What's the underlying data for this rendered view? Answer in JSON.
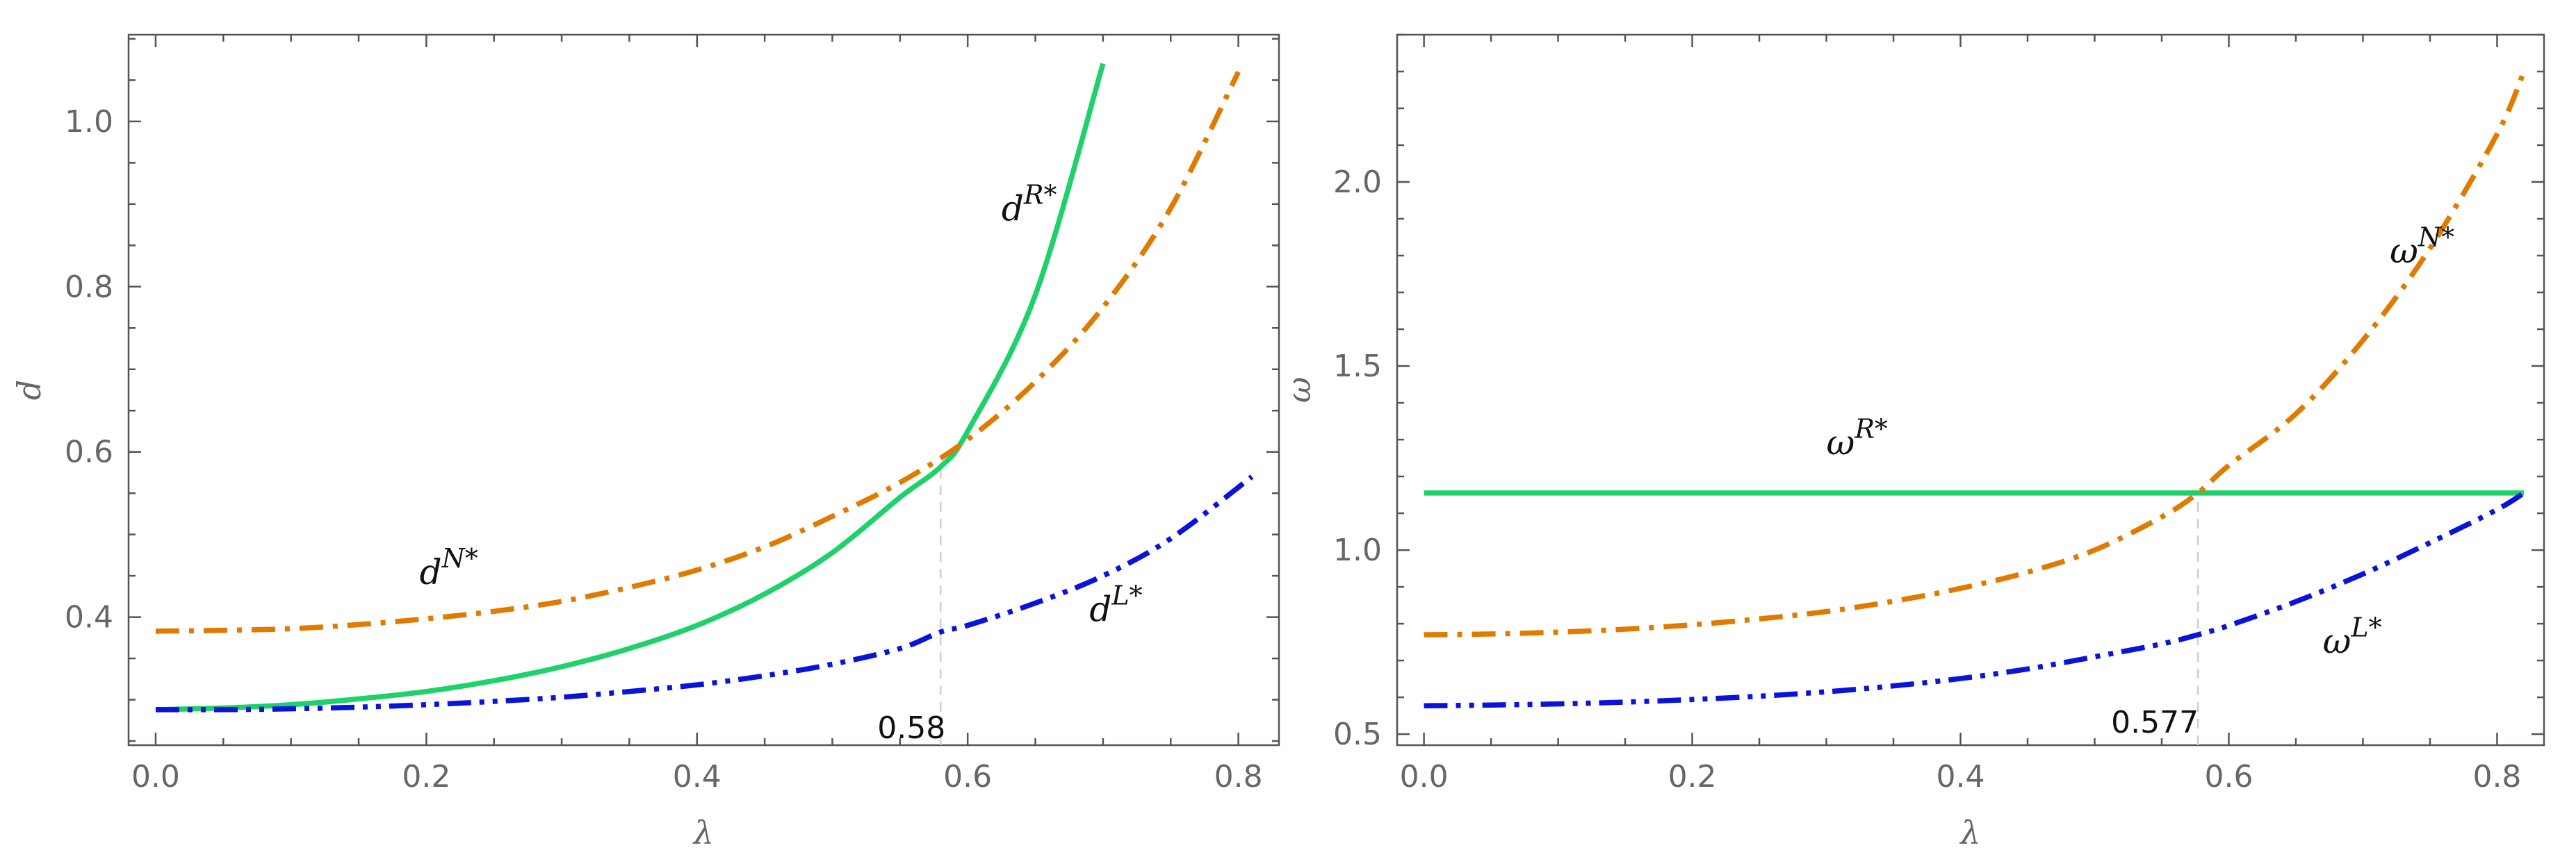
{
  "chart_data": [
    {
      "type": "line",
      "title": "",
      "xlabel": "λ",
      "ylabel": "d",
      "xlim": [
        -0.02,
        0.83
      ],
      "ylim": [
        0.245,
        1.105
      ],
      "xticks": [
        0.0,
        0.2,
        0.4,
        0.6,
        0.8
      ],
      "xtick_labels": [
        "0.0",
        "0.2",
        "0.4",
        "0.6",
        "0.8"
      ],
      "yticks": [
        0.4,
        0.6,
        0.8,
        1.0
      ],
      "ytick_labels": [
        "0.4",
        "0.6",
        "0.8",
        "1.0"
      ],
      "grid": false,
      "series": [
        {
          "name": "d^{R*}",
          "color": "#1fd16a",
          "style": "solid",
          "x": [
            0.0,
            0.05,
            0.1,
            0.15,
            0.2,
            0.25,
            0.3,
            0.35,
            0.4,
            0.45,
            0.5,
            0.55,
            0.58,
            0.6,
            0.65,
            0.7
          ],
          "y": [
            0.288,
            0.29,
            0.294,
            0.301,
            0.31,
            0.323,
            0.34,
            0.362,
            0.39,
            0.428,
            0.478,
            0.545,
            0.582,
            0.625,
            0.79,
            1.07
          ]
        },
        {
          "name": "d^{N*}",
          "color": "#e07b00",
          "style": "dashdot",
          "x": [
            0.0,
            0.05,
            0.1,
            0.15,
            0.2,
            0.25,
            0.3,
            0.35,
            0.4,
            0.45,
            0.5,
            0.55,
            0.6,
            0.65,
            0.7,
            0.75,
            0.8
          ],
          "y": [
            0.383,
            0.384,
            0.386,
            0.391,
            0.398,
            0.407,
            0.419,
            0.436,
            0.457,
            0.485,
            0.522,
            0.563,
            0.615,
            0.685,
            0.775,
            0.895,
            1.06
          ]
        },
        {
          "name": "d^{L*}",
          "color": "#0a14d9",
          "style": "dashdotdot",
          "x": [
            0.0,
            0.05,
            0.1,
            0.15,
            0.2,
            0.25,
            0.3,
            0.35,
            0.4,
            0.45,
            0.5,
            0.55,
            0.58,
            0.6,
            0.65,
            0.7,
            0.75,
            0.81
          ],
          "y": [
            0.288,
            0.288,
            0.289,
            0.291,
            0.294,
            0.298,
            0.303,
            0.31,
            0.318,
            0.329,
            0.343,
            0.362,
            0.382,
            0.39,
            0.417,
            0.45,
            0.495,
            0.57
          ]
        }
      ],
      "marker": {
        "x": 0.58,
        "label": "0.58"
      },
      "curve_labels": [
        {
          "base": "d",
          "sup": "R*",
          "x": 0.625,
          "y": 0.88
        },
        {
          "base": "d",
          "sup": "N*",
          "x": 0.195,
          "y": 0.44
        },
        {
          "base": "d",
          "sup": "L*",
          "x": 0.69,
          "y": 0.395
        }
      ]
    },
    {
      "type": "line",
      "title": "",
      "xlabel": "λ",
      "ylabel": "ω",
      "xlim": [
        -0.02,
        0.835
      ],
      "ylim": [
        0.47,
        2.4
      ],
      "xticks": [
        0.0,
        0.2,
        0.4,
        0.6,
        0.8
      ],
      "xtick_labels": [
        "0.0",
        "0.2",
        "0.4",
        "0.6",
        "0.8"
      ],
      "yticks": [
        0.5,
        1.0,
        1.5,
        2.0
      ],
      "ytick_labels": [
        "0.5",
        "1.0",
        "1.5",
        "2.0"
      ],
      "grid": false,
      "series": [
        {
          "name": "ω^{R*}",
          "color": "#1fd16a",
          "style": "solid",
          "x": [
            0.0,
            0.82
          ],
          "y": [
            1.155,
            1.155
          ]
        },
        {
          "name": "ω^{N*}",
          "color": "#e07b00",
          "style": "dashdot",
          "x": [
            0.0,
            0.05,
            0.1,
            0.15,
            0.2,
            0.25,
            0.3,
            0.35,
            0.4,
            0.45,
            0.5,
            0.55,
            0.577,
            0.6,
            0.65,
            0.7,
            0.75,
            0.8,
            0.82
          ],
          "y": [
            0.77,
            0.772,
            0.777,
            0.785,
            0.797,
            0.813,
            0.833,
            0.861,
            0.896,
            0.94,
            1.0,
            1.09,
            1.155,
            1.23,
            1.37,
            1.57,
            1.82,
            2.13,
            2.3
          ]
        },
        {
          "name": "ω^{L*}",
          "color": "#0a14d9",
          "style": "dashdotdot",
          "x": [
            0.0,
            0.05,
            0.1,
            0.15,
            0.2,
            0.25,
            0.3,
            0.35,
            0.4,
            0.45,
            0.5,
            0.55,
            0.577,
            0.6,
            0.65,
            0.7,
            0.75,
            0.8,
            0.82
          ],
          "y": [
            0.577,
            0.579,
            0.582,
            0.587,
            0.594,
            0.603,
            0.615,
            0.631,
            0.651,
            0.677,
            0.71,
            0.745,
            0.77,
            0.795,
            0.86,
            0.935,
            1.02,
            1.11,
            1.155
          ]
        }
      ],
      "marker": {
        "x": 0.577,
        "label": "0.577"
      },
      "curve_labels": [
        {
          "base": "ω",
          "sup": "R*",
          "x": 0.3,
          "y": 1.26
        },
        {
          "base": "ω",
          "sup": "N*",
          "x": 0.72,
          "y": 1.78
        },
        {
          "base": "ω",
          "sup": "L*",
          "x": 0.67,
          "y": 0.72
        }
      ]
    }
  ]
}
